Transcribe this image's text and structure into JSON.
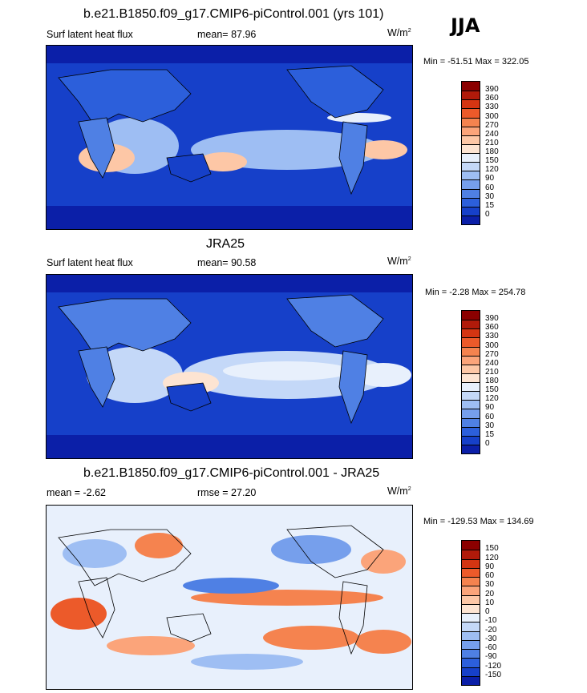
{
  "season": "JJA",
  "colors": {
    "map_blue_dark": "#0b1fa8",
    "map_blue_mid": "#2f62e0",
    "map_blue_light": "#9ec0f4",
    "map_warm_light": "#f9d3bd",
    "map_warm": "#f08a60",
    "land_line": "#000000"
  },
  "panels": [
    {
      "title": "b.e21.B1850.f09_g17.CMIP6-piControl.001 (yrs 101)",
      "variable": "Surf latent heat flux",
      "stat_label": "mean=",
      "stat_value": "87.96",
      "units": "W/m",
      "units_sup": "2",
      "min_max": "Min = -51.51 Max = 322.05",
      "colorbar": {
        "labels": [
          "390",
          "360",
          "330",
          "300",
          "270",
          "240",
          "210",
          "180",
          "150",
          "120",
          "90",
          "60",
          "30",
          "15",
          "0"
        ],
        "colors": [
          "#8b0000",
          "#b01a0a",
          "#d43512",
          "#ec5a2a",
          "#f5834f",
          "#fba47a",
          "#fdc7a6",
          "#fde4d2",
          "#e8f0fc",
          "#c4d8f8",
          "#9ebef3",
          "#769fec",
          "#4f80e4",
          "#2c5fdb",
          "#1640c9",
          "#0b1fa8"
        ]
      }
    },
    {
      "title": "JRA25",
      "variable": "Surf latent heat flux",
      "stat_label": "mean=",
      "stat_value": "90.58",
      "units": "W/m",
      "units_sup": "2",
      "min_max": "Min =  -2.28 Max = 254.78",
      "colorbar": {
        "labels": [
          "390",
          "360",
          "330",
          "300",
          "270",
          "240",
          "210",
          "180",
          "150",
          "120",
          "90",
          "60",
          "30",
          "15",
          "0"
        ],
        "colors": [
          "#8b0000",
          "#b01a0a",
          "#d43512",
          "#ec5a2a",
          "#f5834f",
          "#fba47a",
          "#fdc7a6",
          "#fde4d2",
          "#e8f0fc",
          "#c4d8f8",
          "#9ebef3",
          "#769fec",
          "#4f80e4",
          "#2c5fdb",
          "#1640c9",
          "#0b1fa8"
        ]
      }
    },
    {
      "title": "b.e21.B1850.f09_g17.CMIP6-piControl.001 - JRA25",
      "variable": "mean =  -2.62",
      "stat_label": "rmse =",
      "stat_value": "27.20",
      "units": "W/m",
      "units_sup": "2",
      "min_max": "Min = -129.53 Max = 134.69",
      "colorbar": {
        "labels": [
          "150",
          "120",
          "90",
          "60",
          "30",
          "20",
          "10",
          "0",
          "-10",
          "-20",
          "-30",
          "-60",
          "-90",
          "-120",
          "-150"
        ],
        "colors": [
          "#8b0000",
          "#b01a0a",
          "#d43512",
          "#ec5a2a",
          "#f5834f",
          "#fba47a",
          "#fdc7a6",
          "#fde4d2",
          "#e8f0fc",
          "#c4d8f8",
          "#9ebef3",
          "#769fec",
          "#4f80e4",
          "#2c5fdb",
          "#1640c9",
          "#0b1fa8"
        ]
      }
    }
  ],
  "chart_data": [
    {
      "type": "heatmap",
      "title": "b.e21.B1850.f09_g17.CMIP6-piControl.001 (yrs 101)",
      "variable": "Surf latent heat flux",
      "units": "W/m2",
      "mean": 87.96,
      "min": -51.51,
      "max": 322.05,
      "levels": [
        0,
        15,
        30,
        60,
        90,
        120,
        150,
        180,
        210,
        240,
        270,
        300,
        330,
        360,
        390
      ]
    },
    {
      "type": "heatmap",
      "title": "JRA25",
      "variable": "Surf latent heat flux",
      "units": "W/m2",
      "mean": 90.58,
      "min": -2.28,
      "max": 254.78,
      "levels": [
        0,
        15,
        30,
        60,
        90,
        120,
        150,
        180,
        210,
        240,
        270,
        300,
        330,
        360,
        390
      ]
    },
    {
      "type": "heatmap",
      "title": "b.e21.B1850.f09_g17.CMIP6-piControl.001 - JRA25",
      "units": "W/m2",
      "mean": -2.62,
      "rmse": 27.2,
      "min": -129.53,
      "max": 134.69,
      "levels": [
        -150,
        -120,
        -90,
        -60,
        -30,
        -20,
        -10,
        0,
        10,
        20,
        30,
        60,
        90,
        120,
        150
      ]
    }
  ]
}
